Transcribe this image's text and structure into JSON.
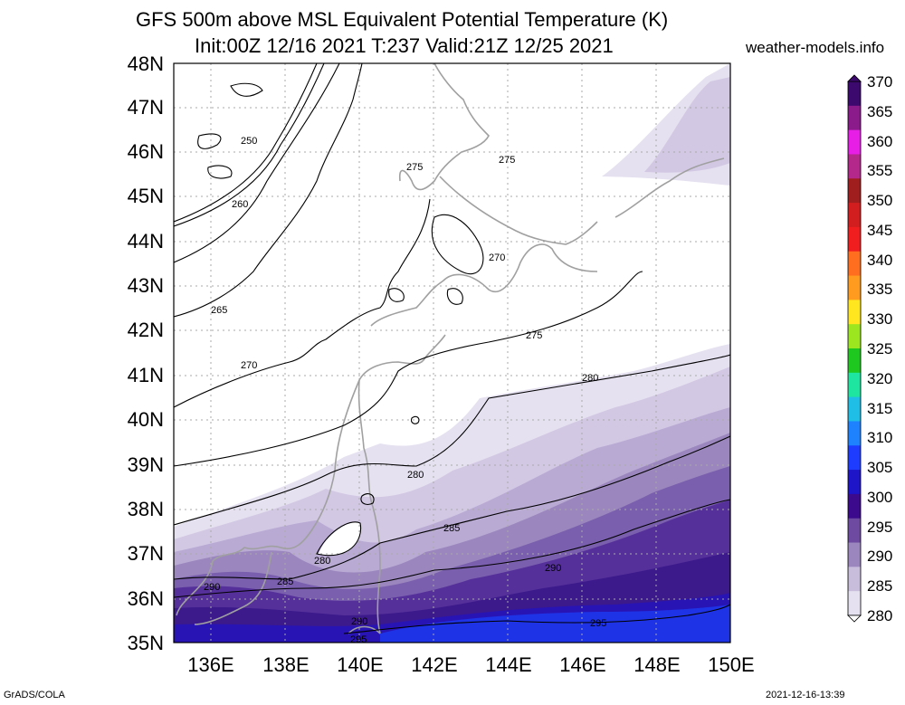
{
  "title": {
    "line1": "GFS 500m above MSL Equivalent Potential Temperature (K)",
    "line2": "Init:00Z 12/16 2021 T:237 Valid:21Z 12/25 2021",
    "site": "weather-models.info"
  },
  "footer": {
    "left": "GrADS/COLA",
    "right": "2021-12-16-13:39"
  },
  "axes": {
    "lat_labels": [
      "48N",
      "47N",
      "46N",
      "45N",
      "44N",
      "43N",
      "42N",
      "41N",
      "40N",
      "39N",
      "38N",
      "37N",
      "36N",
      "35N"
    ],
    "lon_labels": [
      "136E",
      "138E",
      "140E",
      "142E",
      "144E",
      "146E",
      "148E",
      "150E"
    ],
    "lat_range": [
      35,
      48
    ],
    "lon_range": [
      135,
      150
    ]
  },
  "colorbar": {
    "labels": [
      "370",
      "365",
      "360",
      "355",
      "350",
      "345",
      "340",
      "335",
      "330",
      "325",
      "320",
      "315",
      "310",
      "305",
      "300",
      "295",
      "290",
      "285",
      "280"
    ],
    "colors": [
      "#3c0a6e",
      "#8b1a8b",
      "#e61ee6",
      "#b4288c",
      "#a01e1e",
      "#d21e1e",
      "#f01e1e",
      "#ff6e1e",
      "#ff9b1e",
      "#ffe61e",
      "#9be61e",
      "#1ec81e",
      "#1ee6a0",
      "#1ebee6",
      "#1e82ff",
      "#1e3cff",
      "#1e14c8",
      "#3c0a8c",
      "#6e4ba0",
      "#9b87be",
      "#c8bedc",
      "#e6e1f0"
    ]
  },
  "contour_labels": [
    {
      "text": "250"
    },
    {
      "text": "260"
    },
    {
      "text": "265"
    },
    {
      "text": "270"
    },
    {
      "text": "275"
    },
    {
      "text": "275"
    },
    {
      "text": "270"
    },
    {
      "text": "275"
    },
    {
      "text": "280"
    },
    {
      "text": "280"
    },
    {
      "text": "280"
    },
    {
      "text": "285"
    },
    {
      "text": "285"
    },
    {
      "text": "290"
    },
    {
      "text": "290"
    },
    {
      "text": "290"
    },
    {
      "text": "295"
    },
    {
      "text": "295"
    }
  ]
}
